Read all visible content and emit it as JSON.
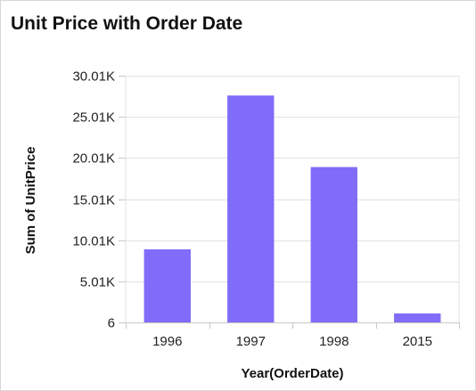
{
  "widget": {
    "title": "Unit Price with Order Date"
  },
  "chart_data": {
    "type": "bar",
    "title": "Unit Price with Order Date",
    "xlabel": "Year(OrderDate)",
    "ylabel": "Sum of UnitPrice",
    "categories": [
      "1996",
      "1997",
      "1998",
      "2015"
    ],
    "series": [
      {
        "values": [
          8900,
          27600,
          18900,
          1100
        ],
        "color": "#7f6cf8"
      }
    ],
    "ylim": [
      6,
      30010
    ],
    "yticks": [
      {
        "value": 6,
        "label": "6"
      },
      {
        "value": 5006,
        "label": "5.01K"
      },
      {
        "value": 10006,
        "label": "10.01K"
      },
      {
        "value": 15006,
        "label": "15.01K"
      },
      {
        "value": 20006,
        "label": "20.01K"
      },
      {
        "value": 25006,
        "label": "25.01K"
      },
      {
        "value": 30006,
        "label": "30.01K"
      }
    ],
    "grid": true,
    "legend": "none",
    "colors": {
      "bar": "#7f6cf8",
      "grid": "#e1e1e1",
      "axis": "#c8c8c8"
    }
  }
}
